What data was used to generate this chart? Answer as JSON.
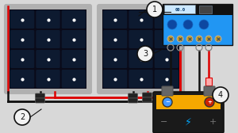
{
  "bg_color": "#d8d8d8",
  "panel_frame_color": "#b0b0b0",
  "panel_cell_dark": "#1a1a2e",
  "panel_cell_mid": "#16213e",
  "cell_highlight": "#ffffff",
  "wire_black": "#111111",
  "wire_red": "#dd0000",
  "controller_body": "#2196f3",
  "controller_dark": "#111111",
  "controller_screen_bg": "#cce8ff",
  "battery_body": "#1a1a1a",
  "battery_top": "#f5a800",
  "battery_neg_dot": "#4499ff",
  "battery_pos_dot": "#cc2200",
  "connector_body": "#222222",
  "label_bg": "#f2f2f2",
  "label_border": "#111111",
  "annotation_line": "#111111",
  "ring_color": "#888888",
  "clamp_color": "#666666"
}
